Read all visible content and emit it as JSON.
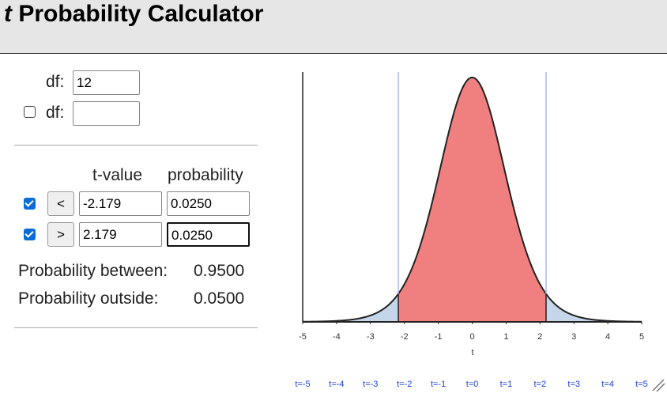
{
  "header": {
    "title_var": "t",
    "title": "Probability Calculator"
  },
  "form": {
    "df1": {
      "label": "df:",
      "value": 12
    },
    "df2": {
      "label": "df:",
      "checked": false
    },
    "columns": [
      "t-value",
      "probability"
    ],
    "rows": [
      {
        "checked": true,
        "button": "<",
        "t_value": -2.179,
        "probability": "0.0250"
      },
      {
        "checked": true,
        "button": ">",
        "t_value": 2.179,
        "probability": "0.0250"
      }
    ],
    "between_label": "Probability between:",
    "between_value": "0.9500",
    "outside_label": "Probability outside:",
    "outside_value": "0.0500"
  },
  "chart_data": {
    "type": "density",
    "distribution": "t",
    "xlabel": "t",
    "xlim": [
      -5,
      5
    ],
    "xticks": [
      -5,
      -4,
      -3,
      -2,
      -1,
      0,
      1,
      2,
      3,
      4,
      5
    ],
    "center_color": "#f08080",
    "tail_color": "#c5d5ea",
    "line_color": "#aab4f0",
    "links": [
      "t=-5",
      "t=-4",
      "t=-3",
      "t=-2",
      "t=-1",
      "t=0",
      "t=1",
      "t=2",
      "t=3",
      "t=4",
      "t=5"
    ]
  }
}
